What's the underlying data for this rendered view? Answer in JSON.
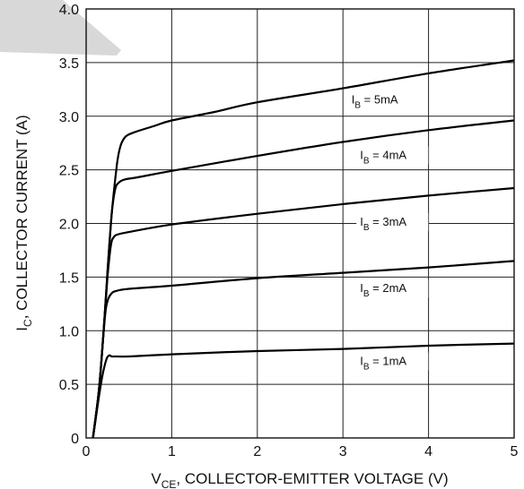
{
  "chart_data": {
    "type": "line",
    "title": "",
    "xlabel": {
      "main": "V",
      "sub": "CE",
      "rest": ", COLLECTOR-EMITTER VOLTAGE (V)"
    },
    "ylabel": {
      "main": "I",
      "sub": "C",
      "rest": ", COLLECTOR CURRENT (A)"
    },
    "xlim": [
      0,
      5
    ],
    "ylim": [
      0,
      4.0
    ],
    "x_ticks": [
      {
        "value": 0,
        "label": "0"
      },
      {
        "value": 1,
        "label": "1"
      },
      {
        "value": 2,
        "label": "2"
      },
      {
        "value": 3,
        "label": "3"
      },
      {
        "value": 4,
        "label": "4"
      },
      {
        "value": 5,
        "label": "5"
      }
    ],
    "y_ticks": [
      {
        "value": 0,
        "label": "0"
      },
      {
        "value": 0.5,
        "label": "0.5"
      },
      {
        "value": 1.0,
        "label": "1.0"
      },
      {
        "value": 1.5,
        "label": "1.5"
      },
      {
        "value": 2.0,
        "label": "2.0"
      },
      {
        "value": 2.5,
        "label": "2.5"
      },
      {
        "value": 3.0,
        "label": "3.0"
      },
      {
        "value": 3.5,
        "label": "3.5"
      },
      {
        "value": 4.0,
        "label": "4.0"
      }
    ],
    "grid": true,
    "series": [
      {
        "name": {
          "main": "I",
          "sub": "B",
          "rest": " = 1mA"
        },
        "label_at": [
          3.2,
          0.68
        ],
        "x": [
          0.08,
          0.12,
          0.16,
          0.2,
          0.24,
          0.27,
          0.3,
          0.35,
          0.5,
          1.0,
          2.0,
          3.0,
          4.0,
          5.0
        ],
        "y": [
          0.0,
          0.22,
          0.44,
          0.62,
          0.74,
          0.77,
          0.76,
          0.76,
          0.76,
          0.78,
          0.81,
          0.83,
          0.86,
          0.88
        ]
      },
      {
        "name": {
          "main": "I",
          "sub": "B",
          "rest": " = 2mA"
        },
        "label_at": [
          3.2,
          1.36
        ],
        "x": [
          0.08,
          0.15,
          0.2,
          0.23,
          0.26,
          0.3,
          0.35,
          0.5,
          1.0,
          2.0,
          3.0,
          4.0,
          5.0
        ],
        "y": [
          0.0,
          0.45,
          0.95,
          1.2,
          1.3,
          1.35,
          1.37,
          1.39,
          1.42,
          1.49,
          1.54,
          1.59,
          1.65
        ]
      },
      {
        "name": {
          "main": "I",
          "sub": "B",
          "rest": " = 3mA"
        },
        "label_at": [
          3.2,
          1.98
        ],
        "x": [
          0.08,
          0.15,
          0.2,
          0.25,
          0.29,
          0.33,
          0.38,
          0.5,
          1.0,
          2.0,
          3.0,
          4.0,
          5.0
        ],
        "y": [
          0.0,
          0.45,
          0.95,
          1.5,
          1.8,
          1.88,
          1.9,
          1.92,
          1.99,
          2.09,
          2.18,
          2.26,
          2.33
        ]
      },
      {
        "name": {
          "main": "I",
          "sub": "B",
          "rest": " = 4mA"
        },
        "label_at": [
          3.2,
          2.6
        ],
        "x": [
          0.08,
          0.15,
          0.2,
          0.25,
          0.3,
          0.34,
          0.38,
          0.45,
          0.6,
          1.0,
          2.0,
          3.0,
          4.0,
          5.0
        ],
        "y": [
          0.0,
          0.45,
          0.95,
          1.55,
          2.1,
          2.32,
          2.38,
          2.41,
          2.43,
          2.49,
          2.63,
          2.76,
          2.87,
          2.96
        ]
      },
      {
        "name": {
          "main": "I",
          "sub": "B",
          "rest": " = 5mA"
        },
        "label_at": [
          3.1,
          3.12
        ],
        "x": [
          0.08,
          0.15,
          0.2,
          0.25,
          0.3,
          0.36,
          0.4,
          0.45,
          0.5,
          0.6,
          0.8,
          1.0,
          1.5,
          2.0,
          3.0,
          4.0,
          5.0
        ],
        "y": [
          0.0,
          0.45,
          0.95,
          1.55,
          2.1,
          2.55,
          2.72,
          2.8,
          2.83,
          2.86,
          2.91,
          2.96,
          3.04,
          3.13,
          3.26,
          3.4,
          3.52
        ]
      }
    ]
  },
  "watermark": {
    "shape": "diagonal-stroke",
    "color": "#d8d8d8"
  }
}
